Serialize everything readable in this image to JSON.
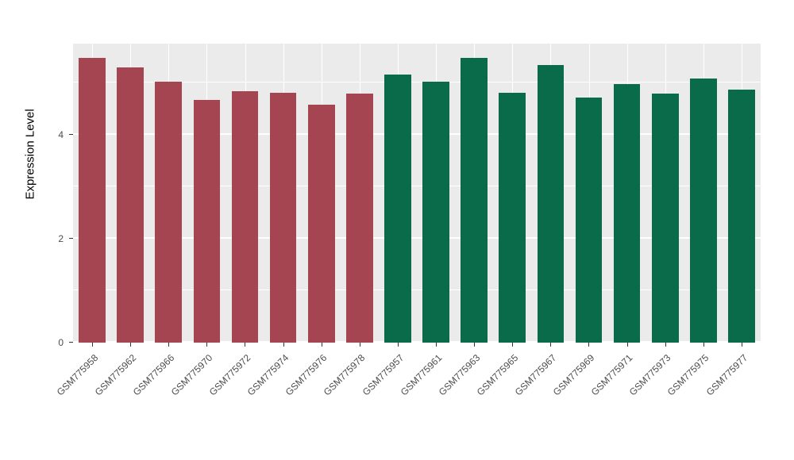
{
  "chart_data": {
    "type": "bar",
    "title": "",
    "xlabel": "",
    "ylabel": "Expression Level",
    "ylim": [
      0,
      5.75
    ],
    "yticks": [
      0,
      2,
      4
    ],
    "minor_ticks": [
      1,
      3,
      5
    ],
    "grid": "on",
    "legend_position": "none",
    "panel_background": "#EBEBEB",
    "gridline_color": "#FFFFFF",
    "group_colors": {
      "red_group": "#A64552",
      "green_group": "#0A6B4A"
    },
    "categories": [
      "GSM775958",
      "GSM775962",
      "GSM775966",
      "GSM775970",
      "GSM775972",
      "GSM775974",
      "GSM775976",
      "GSM775978",
      "GSM775957",
      "GSM775961",
      "GSM775963",
      "GSM775965",
      "GSM775967",
      "GSM775969",
      "GSM775971",
      "GSM775973",
      "GSM775975",
      "GSM775977"
    ],
    "values": [
      5.47,
      5.3,
      5.02,
      4.66,
      4.84,
      4.81,
      4.58,
      4.79,
      5.16,
      5.02,
      5.47,
      4.81,
      5.34,
      4.72,
      4.98,
      4.79,
      5.08,
      4.87
    ],
    "colors": [
      "#A64552",
      "#A64552",
      "#A64552",
      "#A64552",
      "#A64552",
      "#A64552",
      "#A64552",
      "#A64552",
      "#0A6B4A",
      "#0A6B4A",
      "#0A6B4A",
      "#0A6B4A",
      "#0A6B4A",
      "#0A6B4A",
      "#0A6B4A",
      "#0A6B4A",
      "#0A6B4A",
      "#0A6B4A"
    ]
  }
}
